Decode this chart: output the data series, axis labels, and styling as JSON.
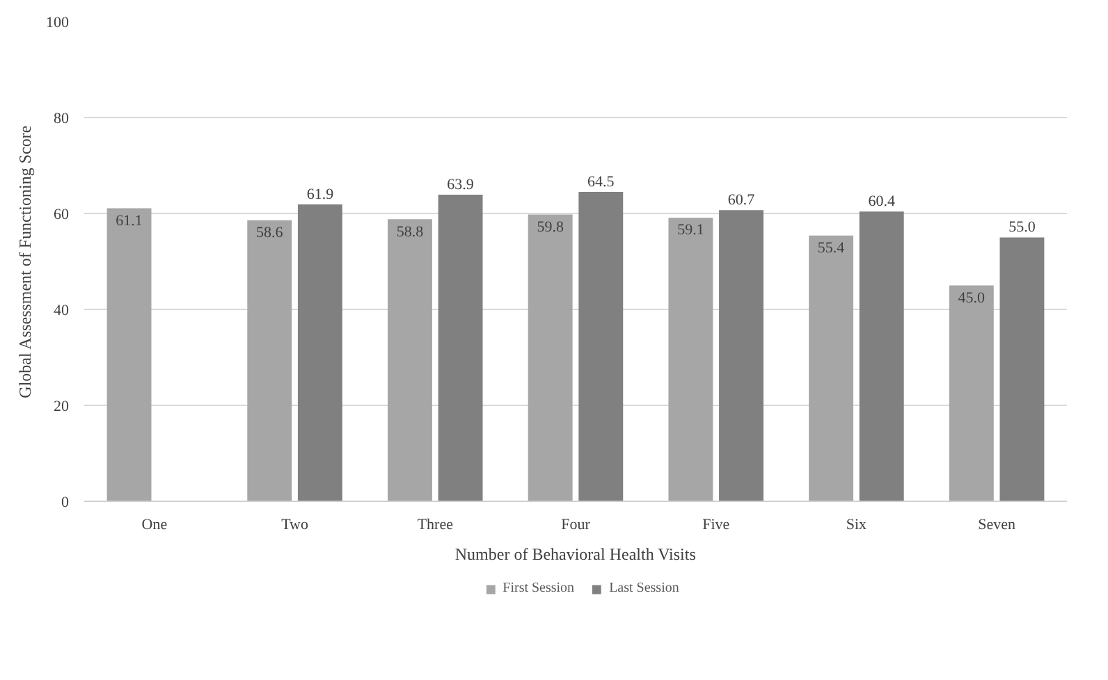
{
  "chart_data": {
    "type": "bar",
    "xlabel": "Number of Behavioral Health Visits",
    "ylabel": "Global Assessment of Functioning Score",
    "categories": [
      "One",
      "Two",
      "Three",
      "Four",
      "Five",
      "Six",
      "Seven"
    ],
    "series": [
      {
        "name": "First Session",
        "color": "#a6a6a6",
        "values": [
          61.1,
          58.6,
          58.8,
          59.8,
          59.1,
          55.4,
          45.0
        ],
        "value_labels": [
          "61.1",
          "58.6",
          "58.8",
          "59.8",
          "59.1",
          "55.4",
          "45.0"
        ]
      },
      {
        "name": "Last Session",
        "color": "#808080",
        "values": [
          null,
          61.9,
          63.9,
          64.5,
          60.7,
          60.4,
          55.0
        ],
        "value_labels": [
          null,
          "61.9",
          "63.9",
          "64.5",
          "60.7",
          "60.4",
          "55.0"
        ]
      }
    ],
    "ylim": [
      0,
      100
    ],
    "yticks": [
      0,
      20,
      40,
      60,
      80,
      100
    ],
    "grid": "y",
    "legend": "bottom",
    "data_labels": true
  }
}
